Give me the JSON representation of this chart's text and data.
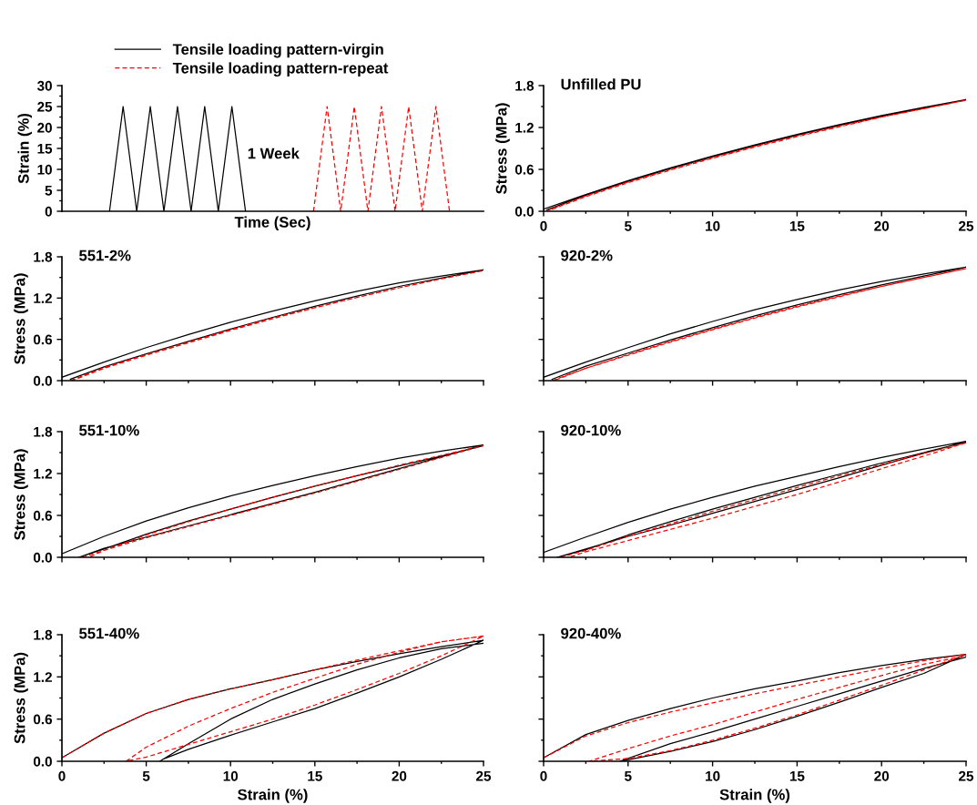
{
  "chart_data": [
    {
      "type": "line",
      "xlabel": "Time (Sec)",
      "ylabel": "Strain (%)",
      "legend": "top",
      "tick_labels": "y",
      "annotations": [
        "1 Week"
      ],
      "categories": [
        null,
        null,
        null,
        null,
        null,
        null,
        null,
        null,
        null,
        null,
        null,
        null,
        null,
        null,
        null,
        null,
        null,
        null,
        null,
        null,
        null,
        null,
        null,
        null,
        null,
        null,
        null,
        null,
        null,
        null,
        null
      ],
      "ylim": [
        0,
        30
      ],
      "yticks": [
        0,
        5,
        10,
        15,
        20,
        25,
        30
      ],
      "series": [
        {
          "name": "Tensile loading pattern-virgin",
          "color": "#000000",
          "line_style": "solid",
          "values": [
            null,
            null,
            null,
            0,
            25,
            0,
            25,
            0,
            25,
            0,
            25,
            0,
            25,
            0,
            null,
            null,
            null,
            null,
            null,
            null,
            null,
            null,
            null,
            null,
            null,
            null,
            null,
            null,
            null,
            null,
            null
          ]
        },
        {
          "name": "Tensile loading pattern-repeat",
          "color": "#ff0000",
          "line_style": "dashed",
          "values": [
            null,
            null,
            null,
            null,
            null,
            null,
            null,
            null,
            null,
            null,
            null,
            null,
            null,
            null,
            null,
            null,
            null,
            null,
            0,
            25,
            0,
            25,
            0,
            25,
            0,
            25,
            0,
            25,
            0,
            null,
            null
          ]
        }
      ]
    },
    {
      "type": "line",
      "title": "Unfilled PU",
      "ylabel": "Stress (MPa)",
      "xlim": [
        0,
        25
      ],
      "ylim": [
        0,
        1.8
      ],
      "xticks": [
        0,
        5,
        10,
        15,
        20,
        25
      ],
      "yticks": [
        {
          "value": 0,
          "label": "0.0"
        },
        {
          "value": 0.6,
          "label": "0.6"
        },
        {
          "value": 1.2,
          "label": "1.2"
        },
        {
          "value": 1.8,
          "label": "1.8"
        }
      ],
      "series": [
        {
          "color": "#000000",
          "line_style": "solid",
          "x": [
            0,
            2.5,
            5,
            7.5,
            10,
            12.5,
            15,
            17.5,
            20,
            22.5,
            25,
            22.5,
            20,
            17.5,
            15,
            12.5,
            10,
            7.5,
            5,
            2.5,
            0.2
          ],
          "values": [
            0.03,
            0.24,
            0.44,
            0.62,
            0.79,
            0.95,
            1.1,
            1.24,
            1.37,
            1.49,
            1.6,
            1.48,
            1.36,
            1.23,
            1.09,
            0.94,
            0.78,
            0.61,
            0.43,
            0.23,
            0.02
          ]
        },
        {
          "color": "#ff0000",
          "line_style": "dashed",
          "x": [
            0.2,
            2.5,
            5,
            7.5,
            10,
            12.5,
            15,
            17.5,
            20,
            22.5,
            25,
            22.5,
            20,
            17.5,
            15,
            12.5,
            10,
            7.5,
            5,
            2.5,
            0.3
          ],
          "values": [
            0.01,
            0.22,
            0.42,
            0.6,
            0.77,
            0.93,
            1.08,
            1.22,
            1.35,
            1.47,
            1.59,
            1.47,
            1.35,
            1.21,
            1.07,
            0.92,
            0.76,
            0.59,
            0.41,
            0.21,
            0.01
          ]
        }
      ]
    },
    {
      "type": "line",
      "title": "551-2%",
      "ylabel": "Stress (MPa)",
      "tick_labels": "y",
      "xlim": [
        0,
        25
      ],
      "ylim": [
        0,
        1.8
      ],
      "xticks": [
        0,
        5,
        10,
        15,
        20,
        25
      ],
      "yticks": [
        {
          "value": 0,
          "label": "0.0"
        },
        {
          "value": 0.6,
          "label": "0.6"
        },
        {
          "value": 1.2,
          "label": "1.2"
        },
        {
          "value": 1.8,
          "label": "1.8"
        }
      ],
      "series": [
        {
          "color": "#000000",
          "line_style": "solid",
          "x": [
            0,
            2.5,
            5,
            7.5,
            10,
            12.5,
            15,
            17.5,
            20,
            22.5,
            25,
            22.5,
            20,
            17.5,
            15,
            12.5,
            10,
            7.5,
            5,
            2.5,
            0.5
          ],
          "values": [
            0.05,
            0.27,
            0.48,
            0.67,
            0.85,
            1.01,
            1.16,
            1.3,
            1.42,
            1.52,
            1.61,
            1.49,
            1.37,
            1.23,
            1.08,
            0.92,
            0.75,
            0.57,
            0.39,
            0.2,
            0.02
          ]
        },
        {
          "color": "#ff0000",
          "line_style": "dashed",
          "x": [
            0.5,
            2.5,
            5,
            7.5,
            10,
            12.5,
            15,
            17.5,
            20,
            22.5,
            25,
            22.5,
            20,
            17.5,
            15,
            12.5,
            10,
            7.5,
            5,
            2.5,
            0.6
          ],
          "values": [
            0.0,
            0.19,
            0.38,
            0.56,
            0.74,
            0.91,
            1.06,
            1.21,
            1.35,
            1.48,
            1.6,
            1.48,
            1.35,
            1.21,
            1.06,
            0.9,
            0.73,
            0.55,
            0.37,
            0.18,
            0.0
          ]
        }
      ]
    },
    {
      "type": "line",
      "title": "920-2%",
      "tick_labels": false,
      "xlim": [
        0,
        25
      ],
      "ylim": [
        0,
        1.8
      ],
      "xticks": [
        0,
        5,
        10,
        15,
        20,
        25
      ],
      "yticks": [
        {
          "value": 0,
          "label": null
        },
        {
          "value": 0.6,
          "label": null
        },
        {
          "value": 1.2,
          "label": null
        },
        {
          "value": 1.8,
          "label": null
        }
      ],
      "series": [
        {
          "color": "#000000",
          "line_style": "solid",
          "x": [
            0,
            2.5,
            5,
            7.5,
            10,
            12.5,
            15,
            17.5,
            20,
            22.5,
            25,
            22.5,
            20,
            17.5,
            15,
            12.5,
            10,
            7.5,
            5,
            2.5,
            0.5
          ],
          "values": [
            0.05,
            0.27,
            0.48,
            0.68,
            0.86,
            1.03,
            1.18,
            1.32,
            1.44,
            1.55,
            1.65,
            1.52,
            1.39,
            1.25,
            1.1,
            0.94,
            0.77,
            0.59,
            0.4,
            0.21,
            0.02
          ]
        },
        {
          "color": "#ff0000",
          "line_style": "dashed",
          "x": [
            0.5,
            2.5,
            5,
            7.5,
            10,
            12.5,
            15,
            17.5,
            20,
            22.5,
            25,
            22.5,
            20,
            17.5,
            15,
            12.5,
            10,
            7.5,
            5,
            2.5,
            0.6
          ],
          "values": [
            0.0,
            0.18,
            0.38,
            0.57,
            0.75,
            0.92,
            1.08,
            1.23,
            1.37,
            1.5,
            1.63,
            1.5,
            1.37,
            1.22,
            1.07,
            0.91,
            0.74,
            0.56,
            0.37,
            0.18,
            0.0
          ]
        }
      ]
    },
    {
      "type": "line",
      "title": "551-10%",
      "ylabel": "Stress (MPa)",
      "tick_labels": "y",
      "xlim": [
        0,
        25
      ],
      "ylim": [
        0,
        1.8
      ],
      "xticks": [
        0,
        5,
        10,
        15,
        20,
        25
      ],
      "yticks": [
        {
          "value": 0,
          "label": "0.0"
        },
        {
          "value": 0.6,
          "label": "0.6"
        },
        {
          "value": 1.2,
          "label": "1.2"
        },
        {
          "value": 1.8,
          "label": "1.8"
        }
      ],
      "series": [
        {
          "color": "#000000",
          "line_style": "solid",
          "x": [
            0,
            2.5,
            5,
            7.5,
            10,
            12.5,
            15,
            17.5,
            20,
            22.5,
            25,
            22.5,
            20,
            17.5,
            15,
            12.5,
            10,
            7.5,
            5,
            2.5,
            1.0,
            2.5,
            5,
            7.5,
            10,
            12.5,
            15,
            17.5,
            20,
            22.5,
            25
          ],
          "values": [
            0.05,
            0.3,
            0.52,
            0.71,
            0.88,
            1.03,
            1.17,
            1.3,
            1.42,
            1.52,
            1.61,
            1.44,
            1.27,
            1.1,
            0.93,
            0.77,
            0.61,
            0.45,
            0.29,
            0.13,
            0.0,
            0.12,
            0.33,
            0.52,
            0.69,
            0.86,
            1.02,
            1.17,
            1.31,
            1.45,
            1.6
          ]
        },
        {
          "color": "#ff0000",
          "line_style": "dashed",
          "x": [
            1.2,
            2.5,
            5,
            7.5,
            10,
            12.5,
            15,
            17.5,
            20,
            22.5,
            25,
            22.5,
            20,
            17.5,
            15,
            12.5,
            10,
            7.5,
            5,
            2.5,
            1.6
          ],
          "values": [
            0.0,
            0.1,
            0.32,
            0.51,
            0.69,
            0.86,
            1.02,
            1.17,
            1.32,
            1.46,
            1.6,
            1.43,
            1.26,
            1.09,
            0.92,
            0.76,
            0.6,
            0.44,
            0.28,
            0.1,
            0.0
          ]
        }
      ]
    },
    {
      "type": "line",
      "title": "920-10%",
      "tick_labels": false,
      "xlim": [
        0,
        25
      ],
      "ylim": [
        0,
        1.8
      ],
      "xticks": [
        0,
        5,
        10,
        15,
        20,
        25
      ],
      "yticks": [
        {
          "value": 0,
          "label": null
        },
        {
          "value": 0.6,
          "label": null
        },
        {
          "value": 1.2,
          "label": null
        },
        {
          "value": 1.8,
          "label": null
        }
      ],
      "series": [
        {
          "color": "#000000",
          "line_style": "solid",
          "x": [
            0,
            2.5,
            5,
            7.5,
            10,
            12.5,
            15,
            17.5,
            20,
            22.5,
            25,
            22.5,
            20,
            17.5,
            15,
            12.5,
            10,
            7.5,
            5,
            2.5,
            0.8,
            2.5,
            5,
            7.5,
            10,
            12.5,
            15,
            17.5,
            20,
            22.5,
            25
          ],
          "values": [
            0.07,
            0.29,
            0.5,
            0.69,
            0.86,
            1.02,
            1.16,
            1.3,
            1.43,
            1.55,
            1.66,
            1.49,
            1.32,
            1.14,
            0.97,
            0.8,
            0.63,
            0.46,
            0.3,
            0.12,
            0.0,
            0.11,
            0.32,
            0.51,
            0.69,
            0.86,
            1.03,
            1.19,
            1.35,
            1.5,
            1.65
          ]
        },
        {
          "color": "#ff0000",
          "line_style": "dashed",
          "x": [
            1.0,
            2.5,
            5,
            7.5,
            10,
            12.5,
            15,
            17.5,
            20,
            22.5,
            25,
            22.5,
            20,
            17.5,
            15,
            12.5,
            10,
            7.5,
            5,
            2.5,
            1.5
          ],
          "values": [
            0.0,
            0.1,
            0.3,
            0.48,
            0.66,
            0.83,
            1.0,
            1.17,
            1.33,
            1.49,
            1.64,
            1.45,
            1.27,
            1.08,
            0.9,
            0.73,
            0.56,
            0.4,
            0.24,
            0.08,
            0.0
          ]
        }
      ]
    },
    {
      "type": "line",
      "title": "551-40%",
      "xlabel": "Strain (%)",
      "ylabel": "Stress (MPa)",
      "xlim": [
        0,
        25
      ],
      "ylim": [
        0,
        1.8
      ],
      "xticks": [
        0,
        5,
        10,
        15,
        20,
        25
      ],
      "yticks": [
        {
          "value": 0,
          "label": "0.0"
        },
        {
          "value": 0.6,
          "label": "0.6"
        },
        {
          "value": 1.2,
          "label": "1.2"
        },
        {
          "value": 1.8,
          "label": "1.8"
        }
      ],
      "series": [
        {
          "color": "#000000",
          "line_style": "solid",
          "x": [
            0,
            2.5,
            5,
            7.5,
            10,
            12.5,
            15,
            17.5,
            20,
            22.5,
            25,
            22.5,
            20,
            17.5,
            15,
            12.5,
            10,
            7.5,
            6,
            5.8,
            7.5,
            10,
            12.5,
            15,
            17.5,
            20,
            22.5,
            25
          ],
          "values": [
            0.05,
            0.4,
            0.68,
            0.88,
            1.03,
            1.16,
            1.3,
            1.42,
            1.53,
            1.63,
            1.72,
            1.45,
            1.2,
            0.97,
            0.75,
            0.56,
            0.37,
            0.17,
            0.03,
            0.0,
            0.25,
            0.6,
            0.88,
            1.1,
            1.3,
            1.47,
            1.6,
            1.68
          ]
        },
        {
          "color": "#ff0000",
          "line_style": "dashed",
          "x": [
            0,
            2.5,
            5,
            7.5,
            10,
            12.5,
            15,
            17.5,
            20,
            22.5,
            25,
            22.5,
            20,
            17.5,
            15,
            12.5,
            10,
            7.5,
            5,
            3.8,
            5,
            7.5,
            10,
            12.5,
            15,
            17.5,
            20,
            22.5,
            25
          ],
          "values": [
            0.05,
            0.4,
            0.68,
            0.88,
            1.03,
            1.16,
            1.3,
            1.44,
            1.57,
            1.7,
            1.78,
            1.5,
            1.25,
            1.02,
            0.8,
            0.6,
            0.42,
            0.24,
            0.06,
            0.0,
            0.2,
            0.5,
            0.75,
            0.98,
            1.18,
            1.38,
            1.55,
            1.7,
            1.78
          ]
        }
      ]
    },
    {
      "type": "line",
      "title": "920-40%",
      "xlabel": "Strain (%)",
      "tick_labels": "x",
      "xlim": [
        0,
        25
      ],
      "ylim": [
        0,
        1.8
      ],
      "xticks": [
        0,
        5,
        10,
        15,
        20,
        25
      ],
      "yticks": [
        {
          "value": 0,
          "label": null
        },
        {
          "value": 0.6,
          "label": null
        },
        {
          "value": 1.2,
          "label": null
        },
        {
          "value": 1.8,
          "label": null
        }
      ],
      "series": [
        {
          "color": "#000000",
          "line_style": "solid",
          "x": [
            0,
            2.5,
            5,
            7.5,
            10,
            12.5,
            15,
            17.5,
            20,
            22.5,
            25,
            22.5,
            20,
            17.5,
            15,
            12.5,
            10,
            7.5,
            5,
            4.5,
            7.5,
            10,
            12.5,
            15,
            17.5,
            20,
            22.5,
            25
          ],
          "values": [
            0.05,
            0.38,
            0.58,
            0.75,
            0.9,
            1.03,
            1.14,
            1.26,
            1.36,
            1.45,
            1.52,
            1.25,
            1.05,
            0.84,
            0.64,
            0.45,
            0.28,
            0.14,
            0.02,
            0.0,
            0.25,
            0.42,
            0.6,
            0.78,
            0.96,
            1.14,
            1.32,
            1.48
          ]
        },
        {
          "color": "#ff0000",
          "line_style": "dashed",
          "x": [
            0,
            2.5,
            5,
            7.5,
            10,
            12.5,
            15,
            17.5,
            20,
            22.5,
            25,
            22.5,
            20,
            17.5,
            15,
            12.5,
            10,
            7.5,
            5,
            2.7,
            5,
            7.5,
            10,
            12.5,
            15,
            17.5,
            20,
            22.5,
            25
          ],
          "values": [
            0.05,
            0.36,
            0.55,
            0.7,
            0.83,
            0.96,
            1.08,
            1.2,
            1.32,
            1.43,
            1.52,
            1.3,
            1.08,
            0.87,
            0.66,
            0.47,
            0.3,
            0.15,
            0.04,
            0.0,
            0.18,
            0.36,
            0.52,
            0.7,
            0.88,
            1.05,
            1.22,
            1.38,
            1.5
          ]
        }
      ]
    }
  ]
}
